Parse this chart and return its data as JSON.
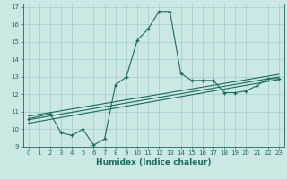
{
  "xlabel": "Humidex (Indice chaleur)",
  "bg_color": "#cce8e4",
  "grid_color": "#aacfca",
  "line_color": "#1a6b60",
  "xlim": [
    -0.5,
    23.5
  ],
  "ylim": [
    9,
    17.2
  ],
  "xticks": [
    0,
    1,
    2,
    3,
    4,
    5,
    6,
    7,
    8,
    9,
    10,
    11,
    12,
    13,
    14,
    15,
    16,
    17,
    18,
    19,
    20,
    21,
    22,
    23
  ],
  "yticks": [
    9,
    10,
    11,
    12,
    13,
    14,
    15,
    16,
    17
  ],
  "main_x": [
    0,
    2,
    3,
    4,
    5,
    6,
    7,
    8,
    9,
    10,
    11,
    12,
    13,
    14,
    15,
    16,
    17,
    18,
    19,
    20,
    21,
    22,
    23
  ],
  "main_y": [
    10.6,
    10.9,
    9.8,
    9.65,
    10.0,
    9.1,
    9.45,
    12.55,
    13.0,
    15.1,
    15.75,
    16.75,
    16.75,
    13.2,
    12.8,
    12.8,
    12.8,
    12.1,
    12.1,
    12.2,
    12.5,
    12.9,
    12.9
  ],
  "line1_x": [
    0,
    23
  ],
  "line1_y": [
    10.35,
    12.85
  ],
  "line2_x": [
    0,
    23
  ],
  "line2_y": [
    10.55,
    13.0
  ],
  "line3_x": [
    0,
    23
  ],
  "line3_y": [
    10.75,
    13.15
  ]
}
